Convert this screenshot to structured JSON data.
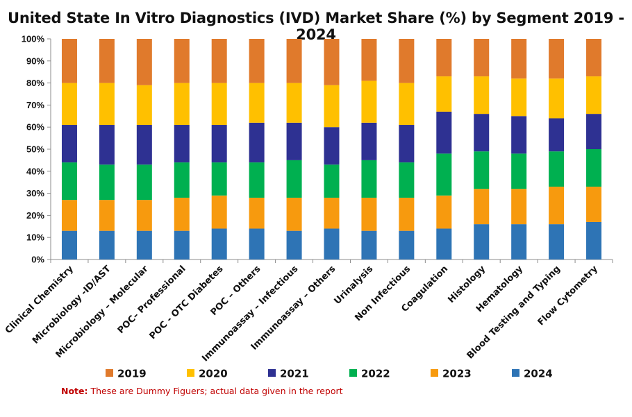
{
  "chart_data": {
    "type": "bar",
    "stacked": true,
    "title": "United State In Vitro Diagnostics (IVD) Market Share (%) by Segment 2019 - 2024",
    "xlabel": "",
    "ylabel": "",
    "ylim": [
      0,
      100
    ],
    "yticks": [
      "0%",
      "10%",
      "20%",
      "30%",
      "40%",
      "50%",
      "60%",
      "70%",
      "80%",
      "90%",
      "100%"
    ],
    "grid": false,
    "legend_position": "bottom",
    "categories": [
      "Clinical Chemistry",
      "Microbiology -ID/AST",
      "Microbiology – Molecular",
      "POC– Professional",
      "POC - OTC Diabetes",
      "POC – Others",
      "Immunoassay – Infectious",
      "Immunoassay – Others",
      "Urinalysis",
      "Non Infectious",
      "Coagulation",
      "Histology",
      "Hematology",
      "Blood Testing and Typing",
      "Flow Cytometry"
    ],
    "series": [
      {
        "name": "2024",
        "color": "#2e74b5",
        "values": [
          13,
          13,
          13,
          13,
          14,
          14,
          13,
          14,
          13,
          13,
          14,
          16,
          16,
          16,
          17
        ]
      },
      {
        "name": "2023",
        "color": "#f79a0e",
        "values": [
          14,
          14,
          14,
          15,
          15,
          14,
          15,
          14,
          15,
          15,
          15,
          16,
          16,
          17,
          16
        ]
      },
      {
        "name": "2022",
        "color": "#00b050",
        "values": [
          17,
          16,
          16,
          16,
          15,
          16,
          17,
          15,
          17,
          16,
          19,
          17,
          16,
          16,
          17
        ]
      },
      {
        "name": "2021",
        "color": "#2e3192",
        "values": [
          17,
          18,
          18,
          17,
          17,
          18,
          17,
          17,
          17,
          17,
          19,
          17,
          17,
          15,
          16
        ]
      },
      {
        "name": "2020",
        "color": "#ffc000",
        "values": [
          19,
          19,
          18,
          19,
          19,
          18,
          18,
          19,
          19,
          19,
          16,
          17,
          17,
          18,
          17
        ]
      },
      {
        "name": "2019",
        "color": "#e07a2c",
        "values": [
          20,
          20,
          21,
          20,
          20,
          20,
          20,
          21,
          19,
          20,
          17,
          17,
          18,
          18,
          17
        ]
      }
    ],
    "legend_order": [
      "2019",
      "2020",
      "2021",
      "2022",
      "2023",
      "2024"
    ]
  },
  "note": {
    "label": "Note:",
    "text": " These are Dummy Figuers; actual data given in the report"
  }
}
